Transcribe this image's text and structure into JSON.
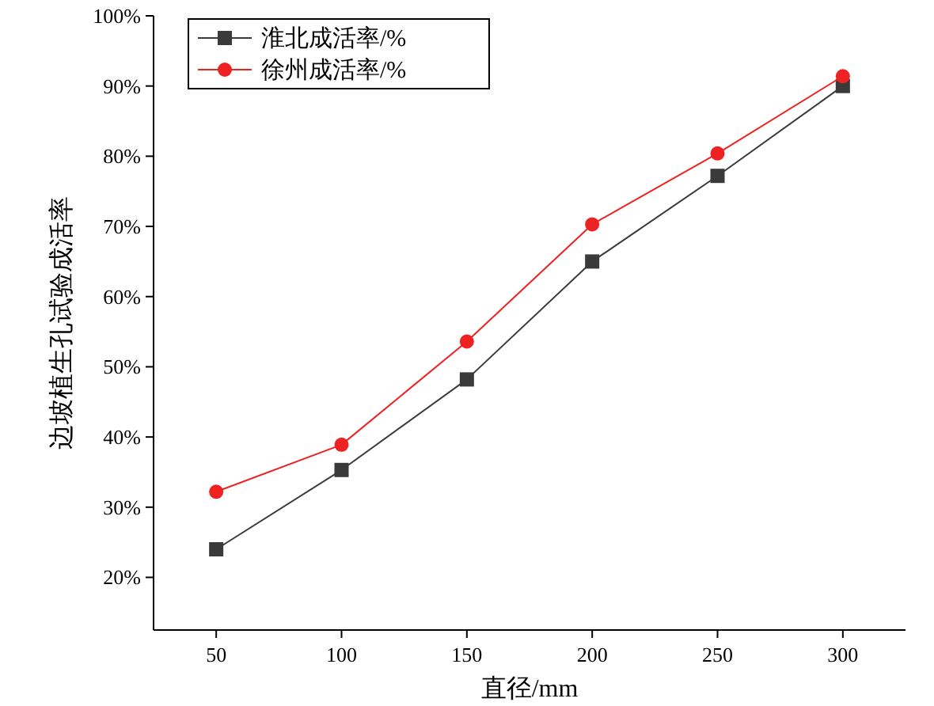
{
  "chart_data": {
    "type": "line",
    "xlabel": "直径/mm",
    "ylabel": "边坡植生孔试验成活率",
    "x": [
      50,
      100,
      150,
      200,
      250,
      300
    ],
    "xlim": [
      25,
      325
    ],
    "xticks": [
      50,
      100,
      150,
      200,
      250,
      300
    ],
    "ylim": [
      12.5,
      100
    ],
    "yticks": [
      {
        "value": 20,
        "label": "20%"
      },
      {
        "value": 30,
        "label": "30%"
      },
      {
        "value": 40,
        "label": "40%"
      },
      {
        "value": 50,
        "label": "50%"
      },
      {
        "value": 60,
        "label": "60%"
      },
      {
        "value": 70,
        "label": "70%"
      },
      {
        "value": 80,
        "label": "80%"
      },
      {
        "value": 90,
        "label": "90%"
      },
      {
        "value": 100,
        "label": "100%"
      }
    ],
    "legend": "top left",
    "grid": false,
    "series": [
      {
        "name": "淮北成活率/%",
        "color": "#3a3a3a",
        "marker": "square",
        "values": [
          24,
          35.3,
          48.2,
          65,
          77.2,
          90
        ]
      },
      {
        "name": "徐州成活率/%",
        "color": "#ee2222",
        "marker": "circle",
        "values": [
          32.2,
          38.9,
          53.6,
          70.3,
          80.4,
          91.4
        ]
      }
    ]
  }
}
